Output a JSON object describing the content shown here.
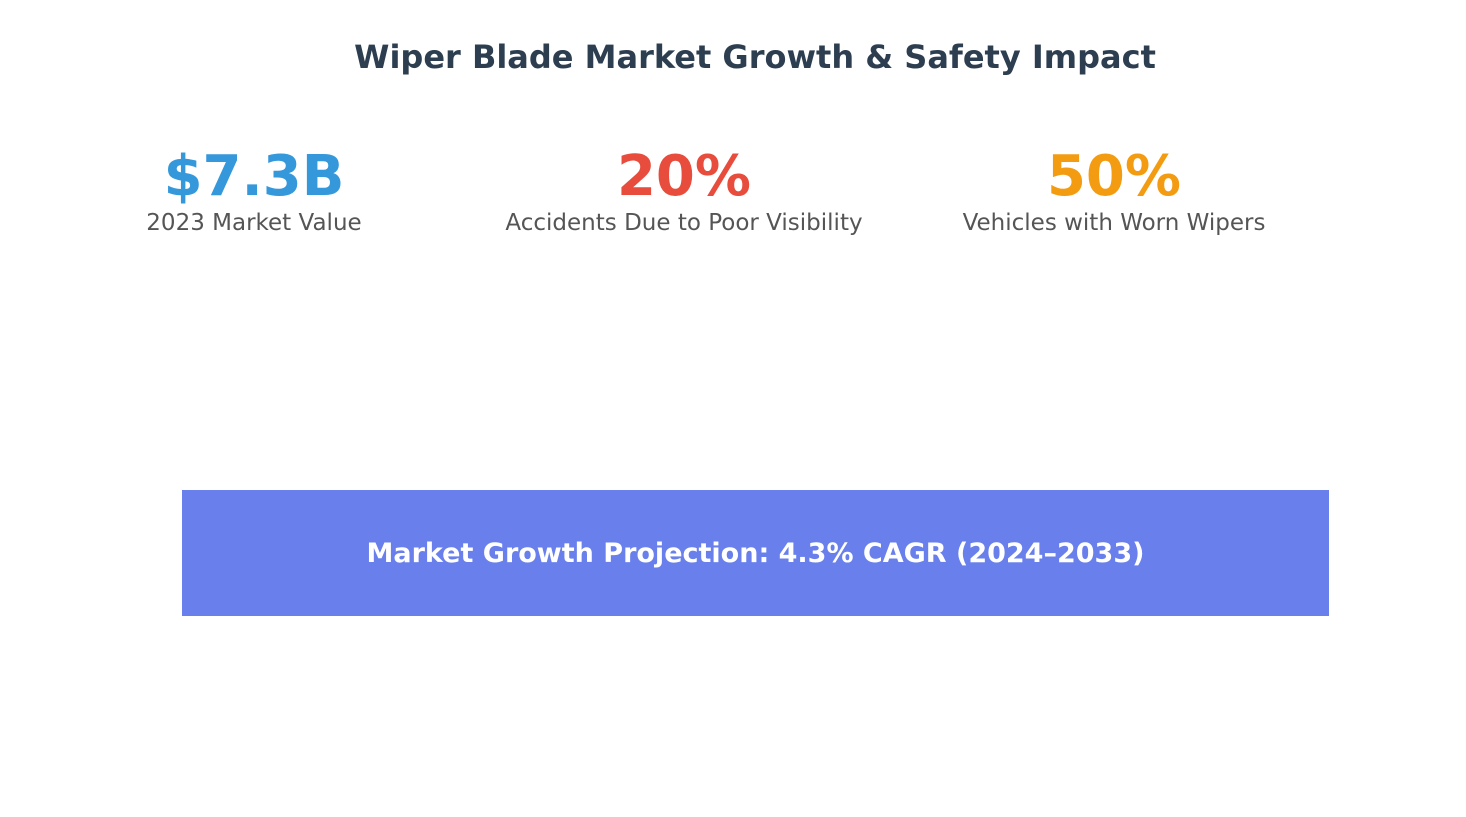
{
  "title": "Wiper Blade Market Growth & Safety Impact",
  "stats": [
    {
      "value": "$7.3B",
      "label": "2023 Market Value",
      "color": "#3498db"
    },
    {
      "value": "20%",
      "label": "Accidents Due to Poor Visibility",
      "color": "#e74c3c"
    },
    {
      "value": "50%",
      "label": "Vehicles with Worn Wipers",
      "color": "#f39c12"
    }
  ],
  "banner": {
    "text": "Market Growth Projection: 4.3% CAGR (2024–2033)",
    "color": "#687fec"
  }
}
